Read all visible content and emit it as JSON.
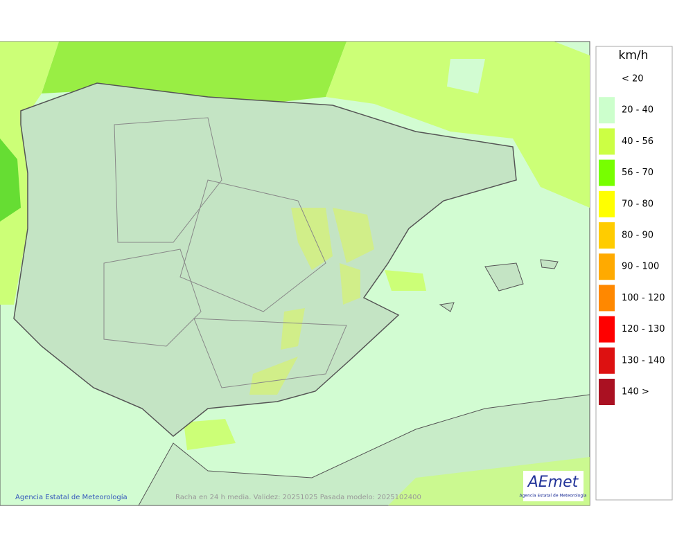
{
  "legend": {
    "unit": "km/h",
    "items": [
      {
        "label": "< 20",
        "color": "#ffffff"
      },
      {
        "label": "20 - 40",
        "color": "#ccffcc"
      },
      {
        "label": "40 - 56",
        "color": "#ccff44"
      },
      {
        "label": "56 - 70",
        "color": "#77ff00"
      },
      {
        "label": "70 - 80",
        "color": "#ffff00"
      },
      {
        "label": "80 - 90",
        "color": "#ffcc00"
      },
      {
        "label": "90 - 100",
        "color": "#ffaa00"
      },
      {
        "label": "100 - 120",
        "color": "#ff8800"
      },
      {
        "label": "120 - 130",
        "color": "#ff0000"
      },
      {
        "label": "130 - 140",
        "color": "#dd1111"
      },
      {
        "label": "140 >",
        "color": "#aa1122"
      }
    ]
  },
  "footer": {
    "credit": "Agencia Estatal de Meteorología",
    "caption": "Racha en 24 h media. Validez: 20251025 Pasada modelo: 2025102400"
  },
  "logo": {
    "text": "AEmet",
    "subtitle": "Agencia Estatal de Meteorología"
  }
}
